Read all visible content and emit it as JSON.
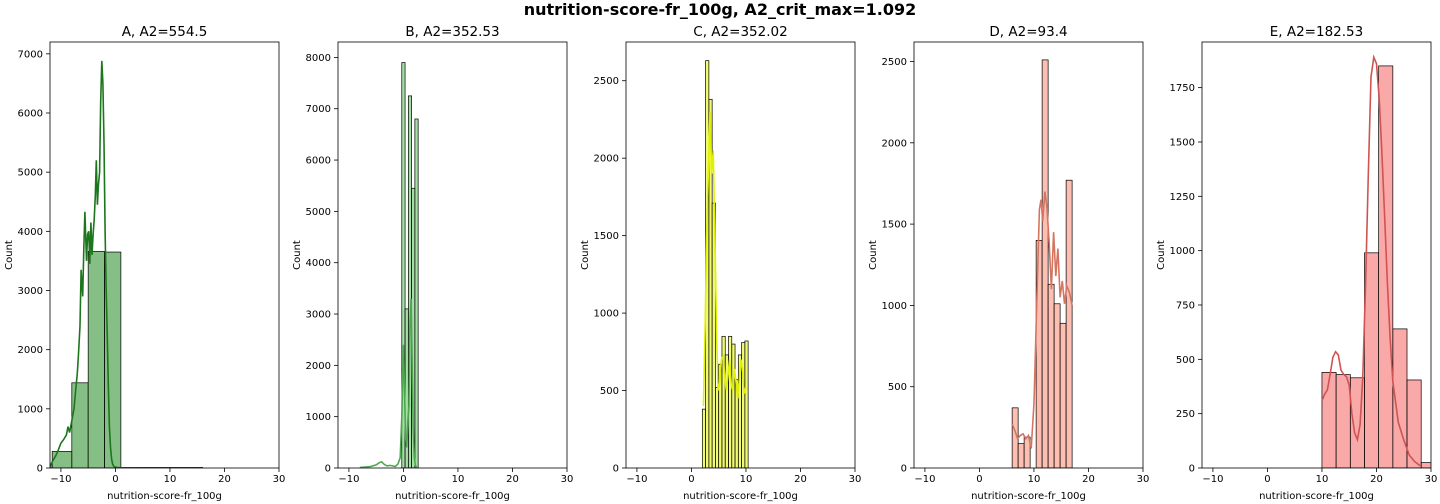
{
  "suptitle": "nutrition-score-fr_100g, A2_crit_max=1.092",
  "chart_data": [
    {
      "type": "histogram",
      "title": "A, A2=554.5",
      "xlabel": "nutrition-score-fr_100g",
      "ylabel": "Count",
      "xlim": [
        -12,
        30
      ],
      "ylim": [
        0,
        7200
      ],
      "xticks": [
        -10,
        0,
        10,
        20,
        30
      ],
      "yticks": [
        0,
        1000,
        2000,
        3000,
        4000,
        5000,
        6000,
        7000
      ],
      "color": "#228b22",
      "bins": [
        {
          "x0": -12,
          "x1": -11.6,
          "count": 60
        },
        {
          "x0": -11.6,
          "x1": -8,
          "count": 280
        },
        {
          "x0": -8,
          "x1": -5,
          "count": 1440
        },
        {
          "x0": -5,
          "x1": -2,
          "count": 3660
        },
        {
          "x0": -2,
          "x1": 1,
          "count": 3650
        },
        {
          "x0": 1,
          "x1": 16,
          "count": 10
        }
      ],
      "kde": {
        "x": [
          -12,
          -11.5,
          -11,
          -10.5,
          -10,
          -9.5,
          -9,
          -8.7,
          -8.4,
          -8,
          -7.6,
          -7.3,
          -7,
          -6.8,
          -6.5,
          -6.3,
          -6,
          -5.8,
          -5.6,
          -5.3,
          -5.1,
          -4.9,
          -4.7,
          -4.5,
          -4.3,
          -4.1,
          -3.9,
          -3.7,
          -3.5,
          -3.3,
          -3.1,
          -2.9,
          -2.7,
          -2.5,
          -2.3,
          -2.1,
          -1.9,
          -1.7,
          -1.5,
          -1.3,
          -1.1,
          -0.9,
          -0.7,
          -0.5,
          -0.2,
          0.2,
          0.8,
          2,
          5,
          10,
          16
        ],
        "y": [
          30,
          120,
          200,
          300,
          420,
          480,
          560,
          700,
          600,
          800,
          1000,
          1300,
          1600,
          1900,
          2400,
          3350,
          2900,
          3700,
          4330,
          3500,
          3950,
          4000,
          3450,
          4150,
          3600,
          3950,
          4200,
          4600,
          5200,
          4450,
          4800,
          5000,
          6200,
          6880,
          6500,
          5500,
          4000,
          3000,
          2200,
          1400,
          700,
          350,
          150,
          60,
          20,
          10,
          5,
          3,
          2,
          1,
          0
        ]
      }
    },
    {
      "type": "histogram",
      "title": "B, A2=352.53",
      "xlabel": "nutrition-score-fr_100g",
      "ylabel": "Count",
      "xlim": [
        -12,
        30
      ],
      "ylim": [
        0,
        8300
      ],
      "xticks": [
        -10,
        0,
        10,
        20,
        30
      ],
      "yticks": [
        0,
        1000,
        2000,
        3000,
        4000,
        5000,
        6000,
        7000,
        8000
      ],
      "color": "#5cc55c",
      "bins": [
        {
          "x0": -0.3,
          "x1": 0.3,
          "count": 7900
        },
        {
          "x0": 0.3,
          "x1": 0.9,
          "count": 3100
        },
        {
          "x0": 0.9,
          "x1": 1.5,
          "count": 7250
        },
        {
          "x0": 1.5,
          "x1": 2.1,
          "count": 5450
        },
        {
          "x0": 2.1,
          "x1": 2.7,
          "count": 6800
        }
      ],
      "kde": {
        "x": [
          -8,
          -7,
          -6,
          -5,
          -4.5,
          -4,
          -3.5,
          -3,
          -2.5,
          -2,
          -1.5,
          -1,
          -0.6,
          -0.3,
          0,
          0.2,
          0.4,
          0.6,
          0.8,
          1.0,
          1.2,
          1.4,
          1.6,
          1.8,
          2.0,
          2.2,
          2.4,
          2.6
        ],
        "y": [
          10,
          20,
          30,
          60,
          100,
          120,
          70,
          40,
          50,
          40,
          30,
          80,
          200,
          1000,
          2400,
          1500,
          600,
          400,
          900,
          1200,
          2800,
          3300,
          2000,
          800,
          200,
          50,
          10,
          0
        ]
      }
    },
    {
      "type": "histogram",
      "title": "C, A2=352.02",
      "xlabel": "nutrition-score-fr_100g",
      "ylabel": "Count",
      "xlim": [
        -12,
        30
      ],
      "ylim": [
        0,
        2750
      ],
      "xticks": [
        -10,
        0,
        10,
        20,
        30
      ],
      "yticks": [
        0,
        500,
        1000,
        1500,
        2000,
        2500
      ],
      "color": "#e6f500",
      "bins": [
        {
          "x0": 2.0,
          "x1": 2.6,
          "count": 380
        },
        {
          "x0": 2.6,
          "x1": 3.2,
          "count": 2630
        },
        {
          "x0": 3.2,
          "x1": 3.8,
          "count": 2380
        },
        {
          "x0": 3.8,
          "x1": 4.4,
          "count": 1710
        },
        {
          "x0": 4.4,
          "x1": 5.0,
          "count": 520
        },
        {
          "x0": 5.0,
          "x1": 5.6,
          "count": 670
        },
        {
          "x0": 5.6,
          "x1": 6.2,
          "count": 850
        },
        {
          "x0": 6.2,
          "x1": 6.8,
          "count": 730
        },
        {
          "x0": 6.8,
          "x1": 7.4,
          "count": 850
        },
        {
          "x0": 7.4,
          "x1": 8.0,
          "count": 800
        },
        {
          "x0": 8.0,
          "x1": 8.6,
          "count": 570
        },
        {
          "x0": 8.6,
          "x1": 9.2,
          "count": 730
        },
        {
          "x0": 9.2,
          "x1": 9.8,
          "count": 810
        },
        {
          "x0": 9.8,
          "x1": 10.4,
          "count": 820
        }
      ],
      "kde": {
        "x": [
          2.2,
          2.5,
          2.8,
          3.1,
          3.4,
          3.7,
          4.0,
          4.3,
          4.6,
          4.9,
          5.2,
          5.5,
          5.8,
          6.1,
          6.4,
          6.7,
          7.0,
          7.3,
          7.6,
          7.9,
          8.2,
          8.5,
          8.8,
          9.1,
          9.4,
          9.7,
          10.0
        ],
        "y": [
          400,
          900,
          1500,
          1900,
          2300,
          1900,
          2050,
          1500,
          900,
          500,
          550,
          700,
          720,
          600,
          500,
          600,
          700,
          550,
          500,
          640,
          550,
          450,
          580,
          700,
          620,
          480,
          520
        ]
      }
    },
    {
      "type": "histogram",
      "title": "D, A2=93.4",
      "xlabel": "nutrition-score-fr_100g",
      "ylabel": "Count",
      "xlim": [
        -12,
        30
      ],
      "ylim": [
        0,
        2620
      ],
      "xticks": [
        -10,
        0,
        10,
        20,
        30
      ],
      "yticks": [
        0,
        500,
        1000,
        1500,
        2000,
        2500
      ],
      "color": "#fa8a72",
      "bins": [
        {
          "x0": 6.0,
          "x1": 7.1,
          "count": 370
        },
        {
          "x0": 7.1,
          "x1": 8.2,
          "count": 150
        },
        {
          "x0": 8.2,
          "x1": 9.3,
          "count": 190
        },
        {
          "x0": 9.3,
          "x1": 10.4,
          "count": 0
        },
        {
          "x0": 10.4,
          "x1": 11.5,
          "count": 1400
        },
        {
          "x0": 11.5,
          "x1": 12.6,
          "count": 2510
        },
        {
          "x0": 12.6,
          "x1": 13.7,
          "count": 1130
        },
        {
          "x0": 13.7,
          "x1": 14.8,
          "count": 1010
        },
        {
          "x0": 14.8,
          "x1": 15.9,
          "count": 890
        },
        {
          "x0": 15.9,
          "x1": 17.0,
          "count": 1770
        }
      ],
      "kde": {
        "x": [
          6.0,
          6.5,
          7.0,
          7.5,
          8.0,
          8.5,
          9.0,
          9.5,
          10.0,
          10.5,
          11.0,
          11.3,
          11.6,
          12.0,
          12.4,
          12.8,
          13.2,
          13.6,
          14.0,
          14.4,
          14.8,
          15.2,
          15.6,
          16.0,
          16.5,
          17.0
        ],
        "y": [
          270,
          230,
          180,
          200,
          210,
          180,
          200,
          120,
          400,
          1000,
          1590,
          1650,
          1520,
          1700,
          1600,
          1380,
          1100,
          1450,
          1180,
          1350,
          1050,
          1150,
          1010,
          1120,
          1080,
          1000
        ]
      }
    },
    {
      "type": "histogram",
      "title": "E, A2=182.53",
      "xlabel": "nutrition-score-fr_100g",
      "ylabel": "Count",
      "xlim": [
        -12,
        30
      ],
      "ylim": [
        0,
        1960
      ],
      "xticks": [
        -10,
        0,
        10,
        20,
        30
      ],
      "yticks": [
        0,
        250,
        500,
        750,
        1000,
        1250,
        1500,
        1750
      ],
      "color": "#f56262",
      "bins": [
        {
          "x0": 10.0,
          "x1": 12.6,
          "count": 440
        },
        {
          "x0": 12.6,
          "x1": 15.2,
          "count": 430
        },
        {
          "x0": 15.2,
          "x1": 17.8,
          "count": 415
        },
        {
          "x0": 17.8,
          "x1": 20.4,
          "count": 990
        },
        {
          "x0": 20.4,
          "x1": 23.0,
          "count": 1850
        },
        {
          "x0": 23.0,
          "x1": 25.6,
          "count": 640
        },
        {
          "x0": 25.6,
          "x1": 28.2,
          "count": 405
        },
        {
          "x0": 28.2,
          "x1": 30.8,
          "count": 25
        }
      ],
      "kde": {
        "x": [
          10.0,
          10.5,
          11.0,
          11.5,
          12.0,
          12.5,
          13.0,
          13.5,
          14.0,
          14.5,
          15.0,
          15.5,
          16.0,
          16.5,
          17.0,
          17.5,
          18.0,
          18.5,
          19.0,
          19.5,
          20.0,
          20.5,
          21.0,
          21.5,
          22.0,
          22.5,
          23.0,
          24.0,
          25.0,
          26.0,
          27.0,
          28.0
        ],
        "y": [
          310,
          340,
          360,
          430,
          510,
          535,
          520,
          450,
          430,
          420,
          380,
          250,
          160,
          130,
          200,
          420,
          850,
          1350,
          1800,
          1890,
          1860,
          1700,
          1450,
          1150,
          850,
          600,
          400,
          210,
          130,
          60,
          30,
          10
        ]
      }
    }
  ]
}
